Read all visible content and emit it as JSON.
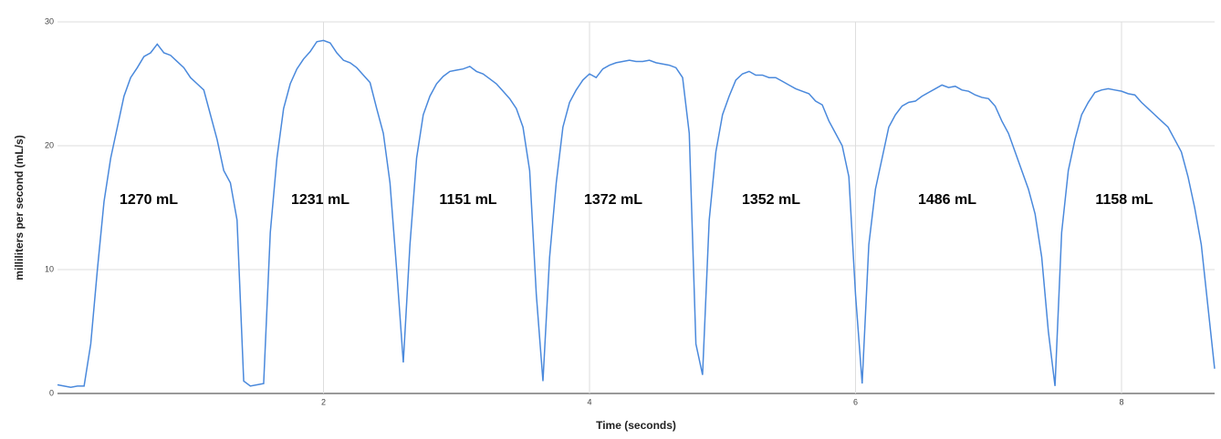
{
  "chart_data": {
    "type": "line",
    "x_label": "Time (seconds)",
    "y_label": "milliliters per second (mL/s)",
    "x": [
      0,
      0.05,
      0.1,
      0.15,
      0.2,
      0.25,
      0.3,
      0.35,
      0.4,
      0.45,
      0.5,
      0.55,
      0.6,
      0.65,
      0.7,
      0.75,
      0.8,
      0.85,
      0.9,
      0.95,
      1,
      1.05,
      1.1,
      1.15,
      1.2,
      1.25,
      1.3,
      1.35,
      1.4,
      1.45,
      1.5,
      1.55,
      1.6,
      1.65,
      1.7,
      1.75,
      1.8,
      1.85,
      1.9,
      1.95,
      2,
      2.05,
      2.1,
      2.15,
      2.2,
      2.25,
      2.3,
      2.35,
      2.4,
      2.45,
      2.5,
      2.55,
      2.6,
      2.65,
      2.7,
      2.75,
      2.8,
      2.85,
      2.9,
      2.95,
      3,
      3.05,
      3.1,
      3.15,
      3.2,
      3.25,
      3.3,
      3.35,
      3.4,
      3.45,
      3.5,
      3.55,
      3.6,
      3.65,
      3.7,
      3.75,
      3.8,
      3.85,
      3.9,
      3.95,
      4,
      4.05,
      4.1,
      4.15,
      4.2,
      4.25,
      4.3,
      4.35,
      4.4,
      4.45,
      4.5,
      4.55,
      4.6,
      4.65,
      4.7,
      4.75,
      4.8,
      4.85,
      4.9,
      4.95,
      5,
      5.05,
      5.1,
      5.15,
      5.2,
      5.25,
      5.3,
      5.35,
      5.4,
      5.45,
      5.5,
      5.55,
      5.6,
      5.65,
      5.7,
      5.75,
      5.8,
      5.85,
      5.9,
      5.95,
      6,
      6.05,
      6.1,
      6.15,
      6.2,
      6.25,
      6.3,
      6.35,
      6.4,
      6.45,
      6.5,
      6.55,
      6.6,
      6.65,
      6.7,
      6.75,
      6.8,
      6.85,
      6.9,
      6.95,
      7,
      7.05,
      7.1,
      7.15,
      7.2,
      7.25,
      7.3,
      7.35,
      7.4,
      7.45,
      7.5,
      7.55,
      7.6,
      7.65,
      7.7,
      7.75,
      7.8,
      7.85,
      7.9,
      7.95,
      8,
      8.05,
      8.1,
      8.15,
      8.2,
      8.25,
      8.3,
      8.35,
      8.4,
      8.45,
      8.5,
      8.55,
      8.6,
      8.65,
      8.7
    ],
    "series": [
      {
        "color": "#4a89dc",
        "values": [
          0.7,
          0.6,
          0.5,
          0.6,
          0.6,
          4,
          10,
          15.5,
          19,
          21.5,
          24,
          25.5,
          26.3,
          27.2,
          27.5,
          28.2,
          27.5,
          27.3,
          26.8,
          26.3,
          25.5,
          25,
          24.5,
          22.5,
          20.5,
          18,
          17,
          14,
          1,
          0.6,
          0.7,
          0.8,
          13,
          19,
          23,
          25,
          26.2,
          27,
          27.6,
          28.4,
          28.5,
          28.3,
          27.5,
          26.9,
          26.7,
          26.3,
          25.7,
          25.1,
          23,
          21,
          17,
          10,
          2.5,
          12,
          19,
          22.5,
          24,
          25,
          25.6,
          26,
          26.1,
          26.2,
          26.4,
          26,
          25.8,
          25.4,
          25,
          24.4,
          23.8,
          23,
          21.5,
          18,
          8,
          1,
          11,
          17,
          21.5,
          23.5,
          24.5,
          25.3,
          25.8,
          25.5,
          26.2,
          26.5,
          26.7,
          26.8,
          26.9,
          26.8,
          26.8,
          26.9,
          26.7,
          26.6,
          26.5,
          26.3,
          25.5,
          21,
          4,
          1.5,
          14,
          19.5,
          22.5,
          24,
          25.3,
          25.8,
          26,
          25.7,
          25.7,
          25.5,
          25.5,
          25.2,
          24.9,
          24.6,
          24.4,
          24.2,
          23.6,
          23.3,
          22,
          21,
          20,
          17.5,
          8,
          0.8,
          12,
          16.5,
          19,
          21.5,
          22.5,
          23.2,
          23.5,
          23.6,
          24,
          24.3,
          24.6,
          24.9,
          24.7,
          24.8,
          24.5,
          24.4,
          24.1,
          23.9,
          23.8,
          23.2,
          22,
          21,
          19.5,
          18,
          16.5,
          14.5,
          11,
          5,
          0.6,
          13,
          18,
          20.5,
          22.5,
          23.5,
          24.3,
          24.5,
          24.6,
          24.5,
          24.4,
          24.2,
          24.1,
          23.5,
          23,
          22.5,
          22,
          21.5,
          20.5,
          19.5,
          17.5,
          15,
          12,
          7,
          2
        ]
      }
    ],
    "annotations": [
      "1270 mL",
      "1231 mL",
      "1151 mL",
      "1372 mL",
      "1352 mL",
      "1486 mL",
      "1158 mL"
    ],
    "xlim": [
      0,
      8.7
    ],
    "xticks": [
      2,
      4,
      6,
      8
    ],
    "ylim": [
      0,
      30
    ],
    "yticks": [
      0,
      10,
      20,
      30
    ],
    "grid": true
  }
}
